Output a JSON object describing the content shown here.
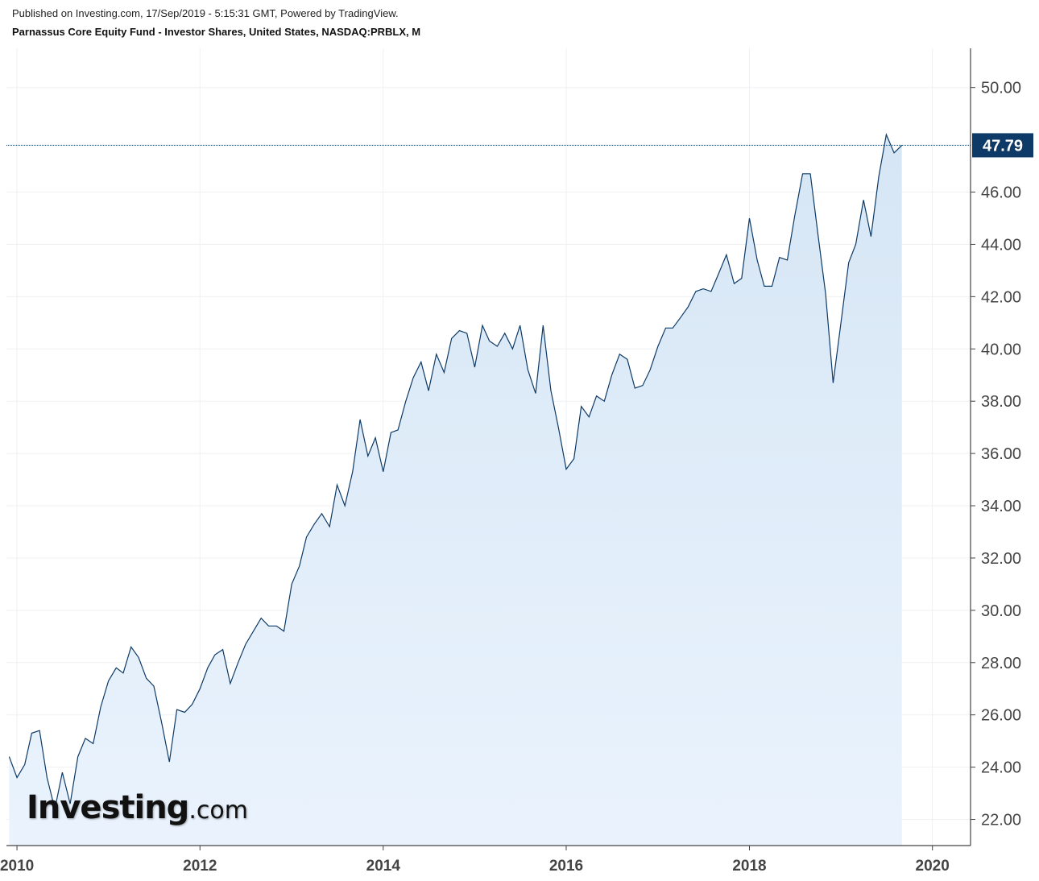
{
  "header": {
    "published": "Published on Investing.com, 17/Sep/2019 - 5:15:31 GMT, Powered by TradingView.",
    "title": "Parnassus Core Equity Fund - Investor Shares, United States, NASDAQ:PRBLX, M"
  },
  "logo": {
    "main": "Investing",
    "suffix": ".com",
    "accent_color": "#f5a623"
  },
  "colors": {
    "line": "#0d3a66",
    "fill": "#dbe9f7",
    "price_box": "#0d3a66",
    "grid": "#eef0f3",
    "axis": "#444444"
  },
  "chart_data": {
    "type": "area",
    "title": "Parnassus Core Equity Fund - Investor Shares, United States, NASDAQ:PRBLX, M",
    "xlabel": "",
    "ylabel": "",
    "xlim": [
      "2009-11-20",
      "2020-06-01"
    ],
    "ylim": [
      21.0,
      51.5
    ],
    "grid": true,
    "y_ticks": [
      22,
      24,
      26,
      28,
      30,
      32,
      34,
      36,
      38,
      40,
      42,
      44,
      46,
      50
    ],
    "y_tick_labels": [
      "22.00",
      "24.00",
      "26.00",
      "28.00",
      "30.00",
      "32.00",
      "34.00",
      "36.00",
      "38.00",
      "40.00",
      "42.00",
      "44.00",
      "46.00",
      "50.00"
    ],
    "x_ticks": [
      "2010-01-01",
      "2012-01-01",
      "2014-01-01",
      "2016-01-01",
      "2018-01-01",
      "2020-01-01"
    ],
    "x_tick_labels": [
      "2010",
      "2012",
      "2014",
      "2016",
      "2018",
      "2020"
    ],
    "last_price": 47.79,
    "last_price_label": "47.79",
    "series": [
      {
        "values": [
          [
            "2009-12-01",
            24.4
          ],
          [
            "2010-01-01",
            23.6
          ],
          [
            "2010-02-01",
            24.1
          ],
          [
            "2010-03-01",
            25.3
          ],
          [
            "2010-04-01",
            25.4
          ],
          [
            "2010-05-01",
            23.6
          ],
          [
            "2010-06-01",
            22.4
          ],
          [
            "2010-07-01",
            23.8
          ],
          [
            "2010-08-01",
            22.6
          ],
          [
            "2010-09-01",
            24.4
          ],
          [
            "2010-10-01",
            25.1
          ],
          [
            "2010-11-01",
            24.9
          ],
          [
            "2010-12-01",
            26.3
          ],
          [
            "2011-01-01",
            27.3
          ],
          [
            "2011-02-01",
            27.8
          ],
          [
            "2011-03-01",
            27.6
          ],
          [
            "2011-04-01",
            28.6
          ],
          [
            "2011-05-01",
            28.2
          ],
          [
            "2011-06-01",
            27.4
          ],
          [
            "2011-07-01",
            27.1
          ],
          [
            "2011-08-01",
            25.7
          ],
          [
            "2011-09-01",
            24.2
          ],
          [
            "2011-10-01",
            26.2
          ],
          [
            "2011-11-01",
            26.1
          ],
          [
            "2011-12-01",
            26.4
          ],
          [
            "2012-01-01",
            27.0
          ],
          [
            "2012-02-01",
            27.8
          ],
          [
            "2012-03-01",
            28.3
          ],
          [
            "2012-04-01",
            28.5
          ],
          [
            "2012-05-01",
            27.2
          ],
          [
            "2012-06-01",
            28.0
          ],
          [
            "2012-07-01",
            28.7
          ],
          [
            "2012-08-01",
            29.2
          ],
          [
            "2012-09-01",
            29.7
          ],
          [
            "2012-10-01",
            29.4
          ],
          [
            "2012-11-01",
            29.4
          ],
          [
            "2012-12-01",
            29.2
          ],
          [
            "2013-01-01",
            31.0
          ],
          [
            "2013-02-01",
            31.7
          ],
          [
            "2013-03-01",
            32.8
          ],
          [
            "2013-04-01",
            33.3
          ],
          [
            "2013-05-01",
            33.7
          ],
          [
            "2013-06-01",
            33.2
          ],
          [
            "2013-07-01",
            34.8
          ],
          [
            "2013-08-01",
            34.0
          ],
          [
            "2013-09-01",
            35.3
          ],
          [
            "2013-10-01",
            37.3
          ],
          [
            "2013-11-01",
            35.9
          ],
          [
            "2013-12-01",
            36.6
          ],
          [
            "2014-01-01",
            35.3
          ],
          [
            "2014-02-01",
            36.8
          ],
          [
            "2014-03-01",
            36.9
          ],
          [
            "2014-04-01",
            38.0
          ],
          [
            "2014-05-01",
            38.9
          ],
          [
            "2014-06-01",
            39.5
          ],
          [
            "2014-07-01",
            38.4
          ],
          [
            "2014-08-01",
            39.8
          ],
          [
            "2014-09-01",
            39.1
          ],
          [
            "2014-10-01",
            40.4
          ],
          [
            "2014-11-01",
            40.7
          ],
          [
            "2014-12-01",
            40.6
          ],
          [
            "2015-01-01",
            39.3
          ],
          [
            "2015-02-01",
            40.9
          ],
          [
            "2015-03-01",
            40.3
          ],
          [
            "2015-04-01",
            40.1
          ],
          [
            "2015-05-01",
            40.6
          ],
          [
            "2015-06-01",
            40.0
          ],
          [
            "2015-07-01",
            40.9
          ],
          [
            "2015-08-01",
            39.2
          ],
          [
            "2015-09-01",
            38.3
          ],
          [
            "2015-10-01",
            40.9
          ],
          [
            "2015-11-01",
            38.4
          ],
          [
            "2015-12-01",
            37.0
          ],
          [
            "2016-01-01",
            35.4
          ],
          [
            "2016-02-01",
            35.8
          ],
          [
            "2016-03-01",
            37.8
          ],
          [
            "2016-04-01",
            37.4
          ],
          [
            "2016-05-01",
            38.2
          ],
          [
            "2016-06-01",
            38.0
          ],
          [
            "2016-07-01",
            39.0
          ],
          [
            "2016-08-01",
            39.8
          ],
          [
            "2016-09-01",
            39.6
          ],
          [
            "2016-10-01",
            38.5
          ],
          [
            "2016-11-01",
            38.6
          ],
          [
            "2016-12-01",
            39.2
          ],
          [
            "2017-01-01",
            40.1
          ],
          [
            "2017-02-01",
            40.8
          ],
          [
            "2017-03-01",
            40.8
          ],
          [
            "2017-04-01",
            41.2
          ],
          [
            "2017-05-01",
            41.6
          ],
          [
            "2017-06-01",
            42.2
          ],
          [
            "2017-07-01",
            42.3
          ],
          [
            "2017-08-01",
            42.2
          ],
          [
            "2017-09-01",
            42.9
          ],
          [
            "2017-10-01",
            43.6
          ],
          [
            "2017-11-01",
            42.5
          ],
          [
            "2017-12-01",
            42.7
          ],
          [
            "2018-01-01",
            45.0
          ],
          [
            "2018-02-01",
            43.4
          ],
          [
            "2018-03-01",
            42.4
          ],
          [
            "2018-04-01",
            42.4
          ],
          [
            "2018-05-01",
            43.5
          ],
          [
            "2018-06-01",
            43.4
          ],
          [
            "2018-07-01",
            45.1
          ],
          [
            "2018-08-01",
            46.7
          ],
          [
            "2018-09-01",
            46.7
          ],
          [
            "2018-10-01",
            44.4
          ],
          [
            "2018-11-01",
            42.1
          ],
          [
            "2018-12-01",
            38.7
          ],
          [
            "2019-01-01",
            41.0
          ],
          [
            "2019-02-01",
            43.3
          ],
          [
            "2019-03-01",
            44.0
          ],
          [
            "2019-04-01",
            45.7
          ],
          [
            "2019-05-01",
            44.3
          ],
          [
            "2019-06-01",
            46.6
          ],
          [
            "2019-07-01",
            48.2
          ],
          [
            "2019-08-01",
            47.5
          ],
          [
            "2019-09-01",
            47.79
          ]
        ]
      }
    ]
  }
}
